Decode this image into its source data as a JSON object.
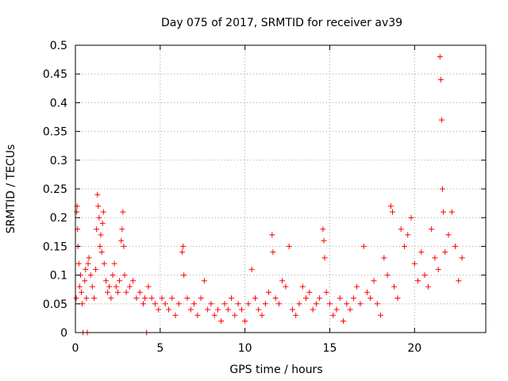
{
  "chart_data": {
    "type": "scatter",
    "title": "Day 075 of 2017, SRMTID for receiver av39",
    "xlabel": "GPS time / hours",
    "ylabel": "SRMTID / TECUs",
    "xlim": [
      0,
      24.2
    ],
    "ylim": [
      0,
      0.5
    ],
    "xticks": [
      0,
      5,
      10,
      15,
      20
    ],
    "yticks": [
      0,
      0.05,
      0.1,
      0.15,
      0.2,
      0.25,
      0.3,
      0.35,
      0.4,
      0.45,
      0.5
    ],
    "xtick_labels": [
      "0",
      "5",
      "10",
      "15",
      "20"
    ],
    "ytick_labels": [
      "0",
      "0.05",
      "0.1",
      "0.15",
      "0.2",
      "0.25",
      "0.3",
      "0.35",
      "0.4",
      "0.45",
      "0.5"
    ],
    "grid": true,
    "marker": "+",
    "color": "#ff0000",
    "series": [
      {
        "name": "SRMTID",
        "points": [
          [
            0.05,
            0.06
          ],
          [
            0.08,
            0.21
          ],
          [
            0.1,
            0.22
          ],
          [
            0.12,
            0.18
          ],
          [
            0.15,
            0.15
          ],
          [
            0.2,
            0.12
          ],
          [
            0.25,
            0.08
          ],
          [
            0.3,
            0.1
          ],
          [
            0.35,
            0.07
          ],
          [
            0.4,
            0.05
          ],
          [
            0.45,
            0.0
          ],
          [
            0.55,
            0.09
          ],
          [
            0.6,
            0.11
          ],
          [
            0.65,
            0.06
          ],
          [
            0.7,
            0.0
          ],
          [
            0.75,
            0.12
          ],
          [
            0.8,
            0.13
          ],
          [
            0.9,
            0.1
          ],
          [
            1.0,
            0.08
          ],
          [
            1.1,
            0.06
          ],
          [
            1.2,
            0.11
          ],
          [
            1.25,
            0.18
          ],
          [
            1.3,
            0.24
          ],
          [
            1.35,
            0.22
          ],
          [
            1.4,
            0.2
          ],
          [
            1.45,
            0.15
          ],
          [
            1.5,
            0.17
          ],
          [
            1.55,
            0.14
          ],
          [
            1.6,
            0.19
          ],
          [
            1.65,
            0.21
          ],
          [
            1.7,
            0.12
          ],
          [
            1.8,
            0.09
          ],
          [
            1.9,
            0.07
          ],
          [
            2.0,
            0.08
          ],
          [
            2.1,
            0.06
          ],
          [
            2.2,
            0.1
          ],
          [
            2.3,
            0.12
          ],
          [
            2.4,
            0.08
          ],
          [
            2.5,
            0.07
          ],
          [
            2.6,
            0.09
          ],
          [
            2.7,
            0.16
          ],
          [
            2.75,
            0.18
          ],
          [
            2.8,
            0.21
          ],
          [
            2.85,
            0.15
          ],
          [
            2.9,
            0.1
          ],
          [
            3.0,
            0.07
          ],
          [
            3.2,
            0.08
          ],
          [
            3.4,
            0.09
          ],
          [
            3.6,
            0.06
          ],
          [
            3.8,
            0.07
          ],
          [
            4.0,
            0.05
          ],
          [
            4.1,
            0.06
          ],
          [
            4.2,
            0.0
          ],
          [
            4.3,
            0.08
          ],
          [
            4.5,
            0.06
          ],
          [
            4.7,
            0.05
          ],
          [
            4.9,
            0.04
          ],
          [
            5.1,
            0.06
          ],
          [
            5.3,
            0.05
          ],
          [
            5.5,
            0.04
          ],
          [
            5.7,
            0.06
          ],
          [
            5.9,
            0.03
          ],
          [
            6.1,
            0.05
          ],
          [
            6.3,
            0.14
          ],
          [
            6.35,
            0.15
          ],
          [
            6.4,
            0.1
          ],
          [
            6.6,
            0.06
          ],
          [
            6.8,
            0.04
          ],
          [
            7.0,
            0.05
          ],
          [
            7.2,
            0.03
          ],
          [
            7.4,
            0.06
          ],
          [
            7.6,
            0.09
          ],
          [
            7.8,
            0.04
          ],
          [
            8.0,
            0.05
          ],
          [
            8.2,
            0.03
          ],
          [
            8.4,
            0.04
          ],
          [
            8.6,
            0.02
          ],
          [
            8.8,
            0.05
          ],
          [
            9.0,
            0.04
          ],
          [
            9.2,
            0.06
          ],
          [
            9.4,
            0.03
          ],
          [
            9.6,
            0.05
          ],
          [
            9.8,
            0.04
          ],
          [
            10.0,
            0.02
          ],
          [
            10.2,
            0.05
          ],
          [
            10.4,
            0.11
          ],
          [
            10.6,
            0.06
          ],
          [
            10.8,
            0.04
          ],
          [
            11.0,
            0.03
          ],
          [
            11.2,
            0.05
          ],
          [
            11.4,
            0.07
          ],
          [
            11.6,
            0.17
          ],
          [
            11.65,
            0.14
          ],
          [
            11.8,
            0.06
          ],
          [
            12.0,
            0.05
          ],
          [
            12.2,
            0.09
          ],
          [
            12.4,
            0.08
          ],
          [
            12.6,
            0.15
          ],
          [
            12.8,
            0.04
          ],
          [
            13.0,
            0.03
          ],
          [
            13.2,
            0.05
          ],
          [
            13.4,
            0.08
          ],
          [
            13.6,
            0.06
          ],
          [
            13.8,
            0.07
          ],
          [
            14.0,
            0.04
          ],
          [
            14.2,
            0.05
          ],
          [
            14.4,
            0.06
          ],
          [
            14.6,
            0.18
          ],
          [
            14.65,
            0.16
          ],
          [
            14.7,
            0.13
          ],
          [
            14.8,
            0.07
          ],
          [
            15.0,
            0.05
          ],
          [
            15.2,
            0.03
          ],
          [
            15.4,
            0.04
          ],
          [
            15.6,
            0.06
          ],
          [
            15.8,
            0.02
          ],
          [
            16.0,
            0.05
          ],
          [
            16.2,
            0.04
          ],
          [
            16.4,
            0.06
          ],
          [
            16.6,
            0.08
          ],
          [
            16.8,
            0.05
          ],
          [
            17.0,
            0.15
          ],
          [
            17.2,
            0.07
          ],
          [
            17.4,
            0.06
          ],
          [
            17.6,
            0.09
          ],
          [
            17.8,
            0.05
          ],
          [
            18.0,
            0.03
          ],
          [
            18.2,
            0.13
          ],
          [
            18.4,
            0.1
          ],
          [
            18.6,
            0.22
          ],
          [
            18.7,
            0.21
          ],
          [
            18.8,
            0.08
          ],
          [
            19.0,
            0.06
          ],
          [
            19.2,
            0.18
          ],
          [
            19.4,
            0.15
          ],
          [
            19.6,
            0.17
          ],
          [
            19.8,
            0.2
          ],
          [
            20.0,
            0.12
          ],
          [
            20.2,
            0.09
          ],
          [
            20.4,
            0.14
          ],
          [
            20.6,
            0.1
          ],
          [
            20.8,
            0.08
          ],
          [
            21.0,
            0.18
          ],
          [
            21.2,
            0.13
          ],
          [
            21.4,
            0.11
          ],
          [
            21.5,
            0.48
          ],
          [
            21.55,
            0.44
          ],
          [
            21.6,
            0.37
          ],
          [
            21.65,
            0.25
          ],
          [
            21.7,
            0.21
          ],
          [
            21.8,
            0.14
          ],
          [
            22.0,
            0.17
          ],
          [
            22.2,
            0.21
          ],
          [
            22.4,
            0.15
          ],
          [
            22.6,
            0.09
          ],
          [
            22.8,
            0.13
          ]
        ]
      }
    ]
  }
}
